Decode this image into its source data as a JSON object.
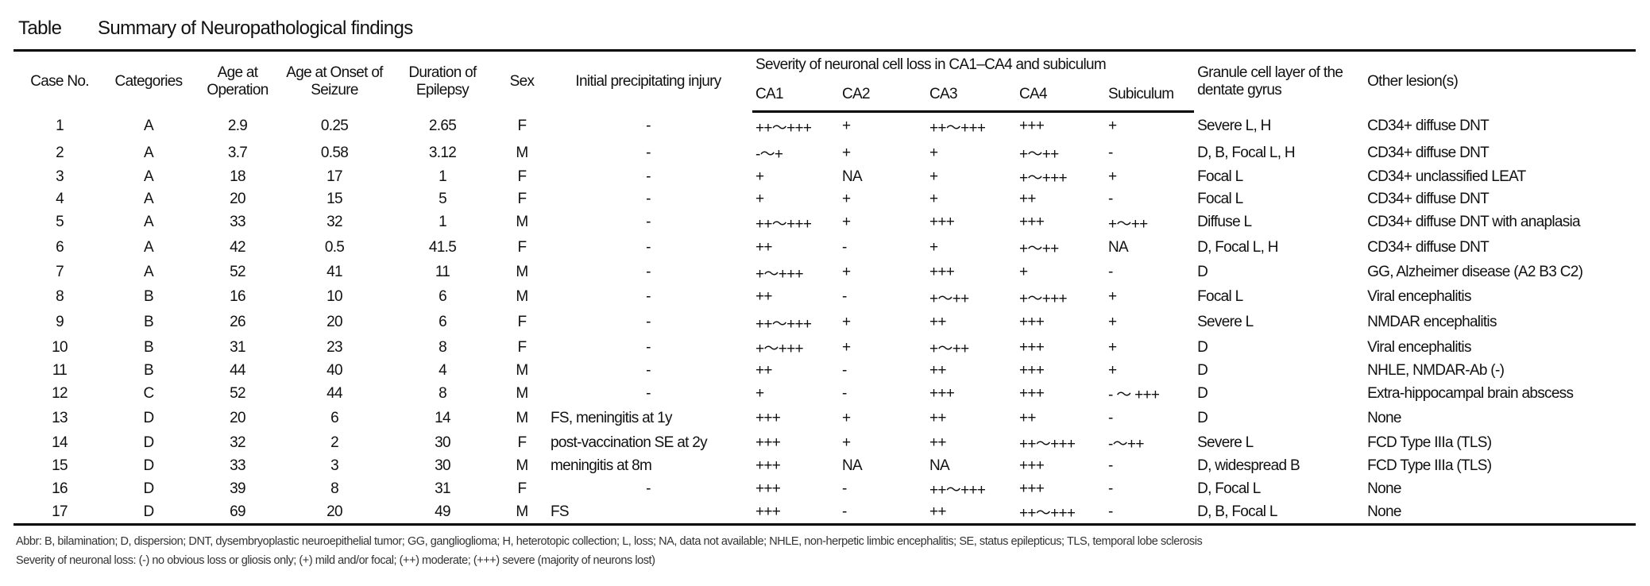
{
  "title": {
    "label": "Table",
    "text": "Summary of Neuropathological findings"
  },
  "headers": {
    "case_no": "Case No.",
    "categories": "Categories",
    "age_operation": "Age at Operation",
    "age_onset": "Age at Onset of Seizure",
    "duration": "Duration of Epilepsy",
    "sex": "Sex",
    "injury": "Initial precipitating injury",
    "severity_group": "Severity of neuronal cell loss in CA1–CA4 and subiculum",
    "ca1": "CA1",
    "ca2": "CA2",
    "ca3": "CA3",
    "ca4": "CA4",
    "subiculum": "Subiculum",
    "granule": "Granule cell layer of the dentate gyrus",
    "other": "Other lesion(s)"
  },
  "rows": [
    [
      "1",
      "A",
      "2.9",
      "0.25",
      "2.65",
      "F",
      "-",
      "++〜+++",
      "+",
      "++〜+++",
      "+++",
      "+",
      "Severe L, H",
      "CD34+ diffuse DNT"
    ],
    [
      "2",
      "A",
      "3.7",
      "0.58",
      "3.12",
      "M",
      "-",
      "-〜+",
      "+",
      "+",
      "+〜++",
      "-",
      "D, B, Focal L, H",
      "CD34+ diffuse DNT"
    ],
    [
      "3",
      "A",
      "18",
      "17",
      "1",
      "F",
      "-",
      "+",
      "NA",
      "+",
      "+〜+++",
      "+",
      "Focal L",
      "CD34+ unclassified LEAT"
    ],
    [
      "4",
      "A",
      "20",
      "15",
      "5",
      "F",
      "-",
      "+",
      "+",
      "+",
      "++",
      "-",
      "Focal L",
      "CD34+ diffuse DNT"
    ],
    [
      "5",
      "A",
      "33",
      "32",
      "1",
      "M",
      "-",
      "++〜+++",
      "+",
      "+++",
      "+++",
      "+〜++",
      "Diffuse L",
      "CD34+ diffuse DNT with anaplasia"
    ],
    [
      "6",
      "A",
      "42",
      "0.5",
      "41.5",
      "F",
      "-",
      "++",
      "-",
      "+",
      "+〜++",
      "NA",
      "D, Focal L, H",
      "CD34+ diffuse DNT"
    ],
    [
      "7",
      "A",
      "52",
      "41",
      "11",
      "M",
      "-",
      "+〜+++",
      "+",
      "+++",
      "+",
      "-",
      "D",
      "GG, Alzheimer disease (A2 B3 C2)"
    ],
    [
      "8",
      "B",
      "16",
      "10",
      "6",
      "M",
      "-",
      "++",
      "-",
      "+〜++",
      "+〜+++",
      "+",
      "Focal L",
      "Viral encephalitis"
    ],
    [
      "9",
      "B",
      "26",
      "20",
      "6",
      "F",
      "-",
      "++〜+++",
      "+",
      "++",
      "+++",
      "+",
      "Severe L",
      "NMDAR encephalitis"
    ],
    [
      "10",
      "B",
      "31",
      "23",
      "8",
      "F",
      "-",
      "+〜+++",
      "+",
      "+〜++",
      "+++",
      "+",
      "D",
      "Viral encephalitis"
    ],
    [
      "11",
      "B",
      "44",
      "40",
      "4",
      "M",
      "-",
      "++",
      "-",
      "++",
      "+++",
      "+",
      "D",
      "NHLE, NMDAR-Ab (-)"
    ],
    [
      "12",
      "C",
      "52",
      "44",
      "8",
      "M",
      "-",
      "+",
      "-",
      "+++",
      "+++",
      "- 〜 +++",
      "D",
      "Extra-hippocampal brain abscess"
    ],
    [
      "13",
      "D",
      "20",
      "6",
      "14",
      "M",
      "FS, meningitis at 1y",
      "+++",
      "+",
      "++",
      "++",
      "-",
      "D",
      "None"
    ],
    [
      "14",
      "D",
      "32",
      "2",
      "30",
      "F",
      "post-vaccination SE at 2y",
      "+++",
      "+",
      "++",
      "++〜+++",
      "-〜++",
      "Severe L",
      "FCD Type IIIa (TLS)"
    ],
    [
      "15",
      "D",
      "33",
      "3",
      "30",
      "M",
      "meningitis at 8m",
      "+++",
      "NA",
      "NA",
      "+++",
      "-",
      "D, widespread B",
      "FCD Type IIIa (TLS)"
    ],
    [
      "16",
      "D",
      "39",
      "8",
      "31",
      "F",
      "-",
      "+++",
      "-",
      "++〜+++",
      "+++",
      "-",
      "D, Focal L",
      "None"
    ],
    [
      "17",
      "D",
      "69",
      "20",
      "49",
      "M",
      "FS",
      "+++",
      "-",
      "++",
      "++〜+++",
      "-",
      "D, B, Focal L",
      "None"
    ]
  ],
  "footnotes": {
    "abbr": "Abbr:  B, bilamination; D, dispersion; DNT, dysembryoplastic neuroepithelial tumor; GG, ganglioglioma; H, heterotopic collection; L, loss; NA, data not available; NHLE, non-herpetic limbic encephalitis; SE, status epilepticus; TLS, temporal lobe sclerosis",
    "severity": "Severity of neuronal loss:  (-) no obvious loss or gliosis only; (+) mild and/or focal; (++) moderate; (+++) severe (majority of neurons lost)"
  }
}
